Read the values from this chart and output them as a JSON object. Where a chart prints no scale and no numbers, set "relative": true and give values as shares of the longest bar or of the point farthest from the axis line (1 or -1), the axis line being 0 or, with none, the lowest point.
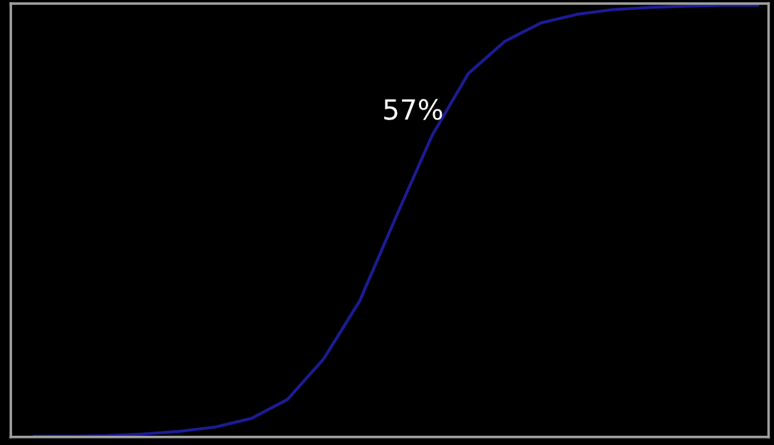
{
  "chart_data": {
    "type": "line",
    "relative": true,
    "categories": [
      null,
      null,
      null,
      null,
      null,
      null,
      null,
      null,
      null,
      null,
      null,
      null,
      null,
      null,
      null,
      null,
      null,
      null,
      null,
      null,
      null
    ],
    "series": [
      {
        "color": "#1c1c96",
        "values": [
          0.002,
          0.002,
          0.003,
          0.007,
          0.013,
          0.023,
          0.043,
          0.087,
          0.181,
          0.316,
          0.51,
          0.699,
          0.842,
          0.916,
          0.959,
          0.979,
          0.99,
          0.995,
          0.998,
          1.0,
          1.0
        ]
      }
    ],
    "annotations": [
      "57%"
    ],
    "grid": false,
    "legend": false,
    "marker": "none",
    "line_style": "solid"
  }
}
